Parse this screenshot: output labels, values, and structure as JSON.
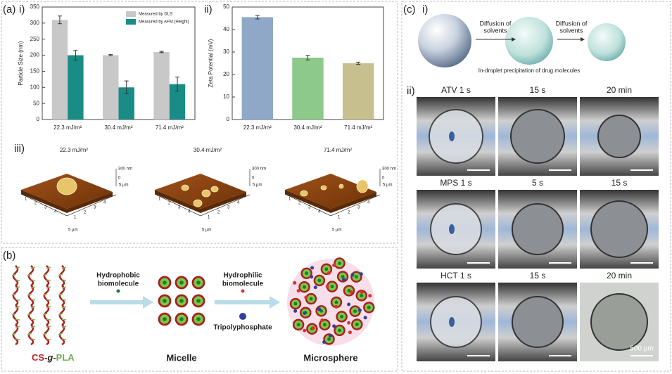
{
  "panel_labels": {
    "a": "(a)",
    "a_i": "i)",
    "a_ii": "ii)",
    "a_iii": "iii)",
    "b": "(b)",
    "c": "(c)",
    "c_i": "i)",
    "c_ii": "ii)"
  },
  "chart_data": [
    {
      "type": "bar",
      "y_label": "Particle Size (nm)",
      "categories": [
        "22.3 mJ/m²",
        "30.4 mJ/m²",
        "71.4 mJ/m²"
      ],
      "series": [
        {
          "name": "Measured by DLS",
          "color": "#c8c8c8",
          "values": [
            310,
            200,
            210
          ],
          "errors": [
            12,
            2,
            2
          ]
        },
        {
          "name": "Measured by AFM (Height)",
          "color": "#1a8c86",
          "values": [
            200,
            100,
            110
          ],
          "errors": [
            15,
            20,
            22
          ]
        }
      ],
      "ylim": [
        0,
        350
      ],
      "yticks": [
        0,
        50,
        100,
        150,
        200,
        250,
        300,
        350
      ],
      "legend": "upper right"
    },
    {
      "type": "bar",
      "y_label": "Zeta Potential (mV)",
      "categories": [
        "22.3 mJ/m²",
        "30.4 mJ/m²",
        "71.4 mJ/m²"
      ],
      "values": [
        45.5,
        27.5,
        25
      ],
      "errors": [
        0.8,
        1,
        0.5
      ],
      "colors": [
        "#8fa8c8",
        "#8cc98a",
        "#c6c08e"
      ],
      "ylim": [
        0,
        50
      ],
      "yticks": [
        0,
        10,
        20,
        30,
        40,
        50
      ]
    }
  ],
  "afm": {
    "titles": [
      "22.3 mJ/m²",
      "30.4 mJ/m²",
      "71.4 mJ/m²"
    ],
    "z_labels": [
      "300 nm",
      "0"
    ],
    "xy_label": "5 µm",
    "ticks": [
      "1",
      "2",
      "3",
      "4"
    ]
  },
  "scheme_b": {
    "hydrophobic": [
      "Hydrophobic",
      "biomolecule"
    ],
    "hydrophilic": [
      "Hydrophilic",
      "biomolecule"
    ],
    "tpp": "Tripolyphosphate",
    "micelle": "Micelle",
    "microsphere": "Microsphere",
    "polymer": [
      "CS",
      "-g-",
      "PLA"
    ]
  },
  "scheme_c": {
    "diffusion": [
      "Diffusion of",
      "solvents"
    ],
    "precipitation": "In-droplet precipitation of drug molecules"
  },
  "micrographs": {
    "rows": [
      [
        "ATV 1 s",
        "15 s",
        "20 min"
      ],
      [
        "MPS 1 s",
        "5 s",
        "15 s"
      ],
      [
        "HCT 1 s",
        "15 s",
        "20 min"
      ]
    ],
    "scale_bar": "500 µm"
  }
}
